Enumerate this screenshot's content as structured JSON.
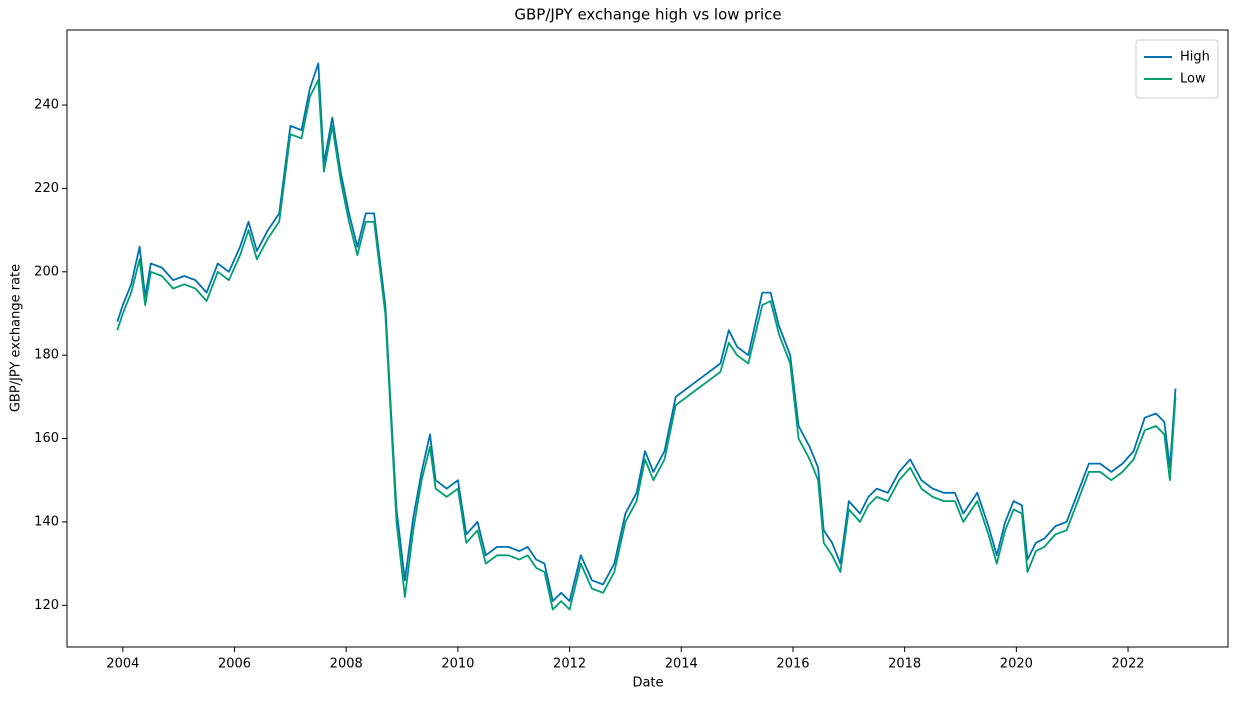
{
  "chart_data": {
    "type": "line",
    "title": "GBP/JPY exchange high vs low price",
    "x_label": "Date",
    "y_label": "GBP/JPY exchange rate",
    "x": [
      2003.9,
      2004.0,
      2004.15,
      2004.3,
      2004.4,
      2004.5,
      2004.7,
      2004.9,
      2005.1,
      2005.3,
      2005.5,
      2005.7,
      2005.9,
      2006.1,
      2006.25,
      2006.4,
      2006.6,
      2006.8,
      2007.0,
      2007.2,
      2007.35,
      2007.5,
      2007.6,
      2007.75,
      2007.9,
      2008.05,
      2008.2,
      2008.35,
      2008.5,
      2008.7,
      2008.8,
      2008.9,
      2009.05,
      2009.2,
      2009.35,
      2009.5,
      2009.6,
      2009.8,
      2010.0,
      2010.15,
      2010.35,
      2010.5,
      2010.7,
      2010.9,
      2011.1,
      2011.25,
      2011.4,
      2011.55,
      2011.7,
      2011.85,
      2012.0,
      2012.2,
      2012.4,
      2012.6,
      2012.8,
      2013.0,
      2013.2,
      2013.35,
      2013.5,
      2013.7,
      2013.9,
      2014.1,
      2014.3,
      2014.5,
      2014.7,
      2014.85,
      2015.0,
      2015.2,
      2015.45,
      2015.6,
      2015.75,
      2015.95,
      2016.1,
      2016.3,
      2016.45,
      2016.55,
      2016.7,
      2016.85,
      2017.0,
      2017.2,
      2017.35,
      2017.5,
      2017.7,
      2017.9,
      2018.1,
      2018.3,
      2018.5,
      2018.7,
      2018.9,
      2019.05,
      2019.3,
      2019.5,
      2019.65,
      2019.8,
      2019.95,
      2020.1,
      2020.2,
      2020.35,
      2020.5,
      2020.7,
      2020.9,
      2021.1,
      2021.3,
      2021.5,
      2021.7,
      2021.9,
      2022.1,
      2022.3,
      2022.5,
      2022.65,
      2022.75,
      2022.85
    ],
    "series": [
      {
        "name": "High",
        "color": "#0072B2",
        "values": [
          188,
          192,
          197,
          206,
          194,
          202,
          201,
          198,
          199,
          198,
          195,
          202,
          200,
          206,
          212,
          205,
          210,
          214,
          235,
          234,
          244,
          250,
          226,
          237,
          224,
          214,
          206,
          214,
          214,
          192,
          167,
          143,
          126,
          141,
          152,
          161,
          150,
          148,
          150,
          137,
          140,
          132,
          134,
          134,
          133,
          134,
          131,
          130,
          121,
          123,
          121,
          132,
          126,
          125,
          130,
          142,
          147,
          157,
          152,
          157,
          170,
          172,
          174,
          176,
          178,
          186,
          182,
          180,
          195,
          195,
          187,
          180,
          163,
          158,
          153,
          138,
          135,
          130,
          145,
          142,
          146,
          148,
          147,
          152,
          155,
          150,
          148,
          147,
          147,
          142,
          147,
          139,
          132,
          140,
          145,
          144,
          131,
          135,
          136,
          139,
          140,
          147,
          154,
          154,
          152,
          154,
          157,
          165,
          166,
          164,
          153,
          172
        ]
      },
      {
        "name": "Low",
        "color": "#009E73",
        "values": [
          186,
          190,
          195,
          203,
          192,
          200,
          199,
          196,
          197,
          196,
          193,
          200,
          198,
          204,
          210,
          203,
          208,
          212,
          233,
          232,
          242,
          246,
          224,
          235,
          222,
          212,
          204,
          212,
          212,
          190,
          165,
          140,
          122,
          138,
          150,
          158,
          148,
          146,
          148,
          135,
          138,
          130,
          132,
          132,
          131,
          132,
          129,
          128,
          119,
          121,
          119,
          130,
          124,
          123,
          128,
          140,
          145,
          155,
          150,
          155,
          168,
          170,
          172,
          174,
          176,
          183,
          180,
          178,
          192,
          193,
          185,
          178,
          160,
          155,
          150,
          135,
          132,
          128,
          143,
          140,
          144,
          146,
          145,
          150,
          153,
          148,
          146,
          145,
          145,
          140,
          145,
          137,
          130,
          138,
          143,
          142,
          128,
          133,
          134,
          137,
          138,
          145,
          152,
          152,
          150,
          152,
          155,
          162,
          163,
          161,
          150,
          170
        ]
      }
    ],
    "xlim": [
      2003.0,
      2023.79
    ],
    "xticks": [
      2004,
      2006,
      2008,
      2010,
      2012,
      2014,
      2016,
      2018,
      2020,
      2022
    ],
    "ylim": [
      110,
      258
    ],
    "yticks": [
      120,
      140,
      160,
      180,
      200,
      220,
      240
    ],
    "grid": false,
    "legend": "upper right"
  }
}
